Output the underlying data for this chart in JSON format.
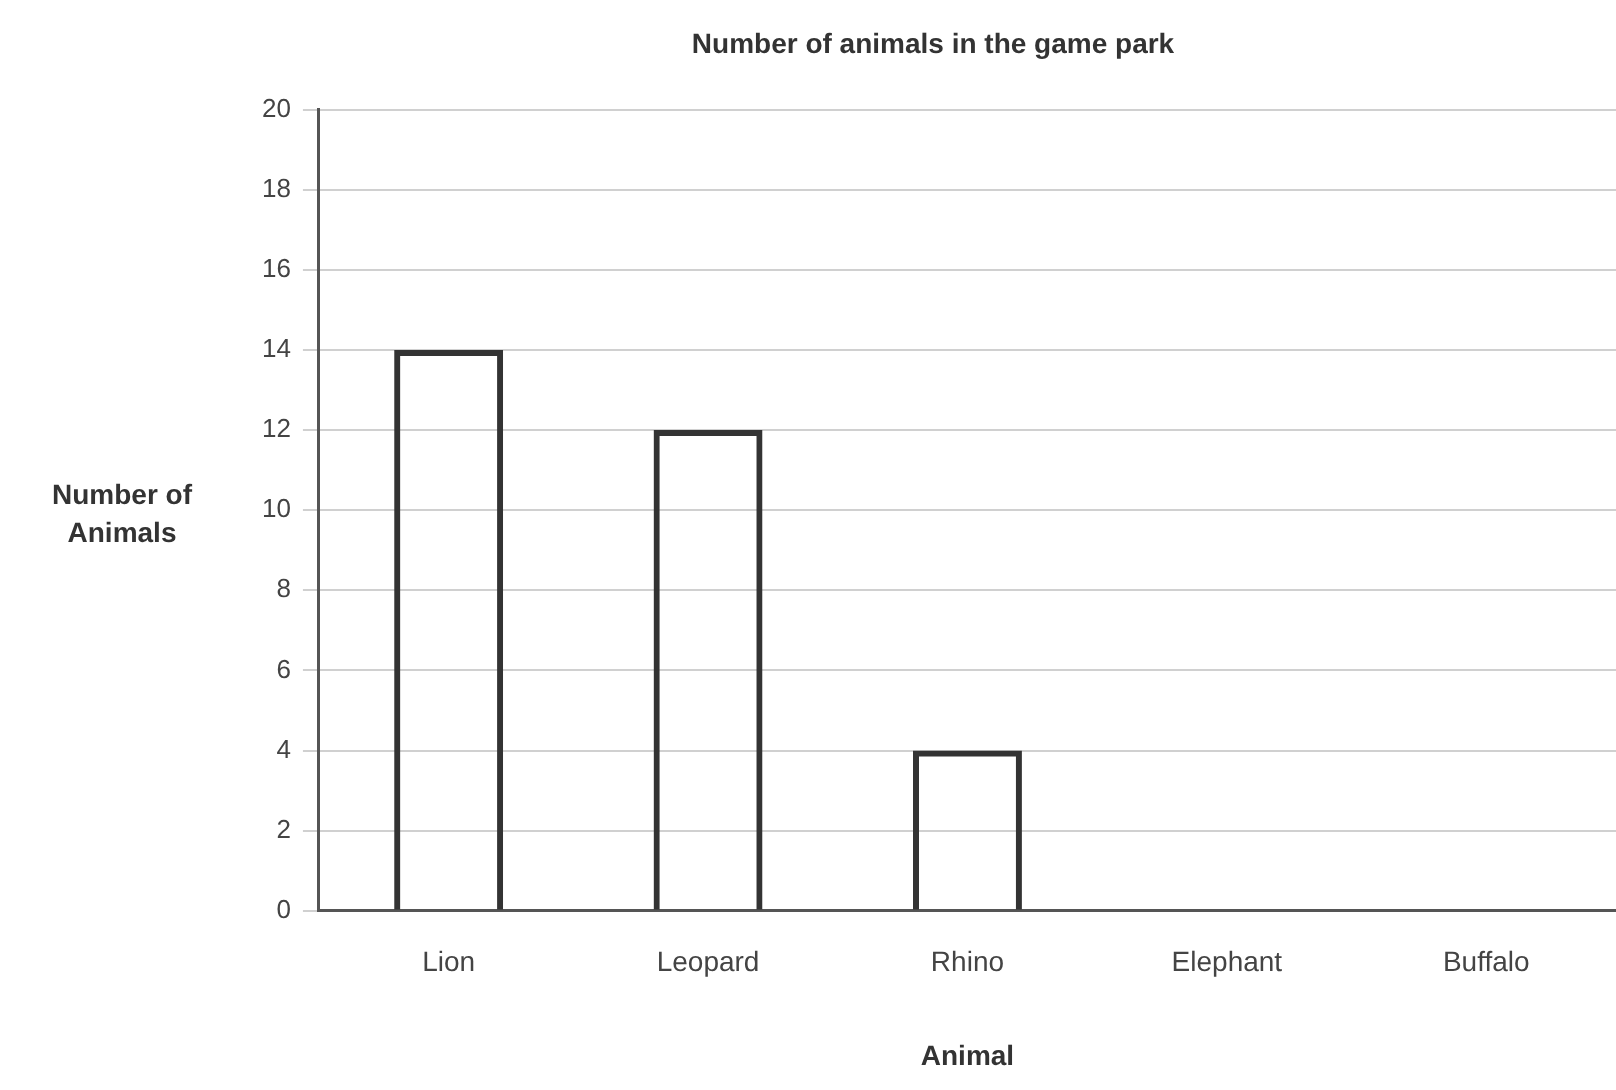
{
  "chart_data": {
    "type": "bar",
    "title": "Number of animals in the game park",
    "xlabel": "Animal",
    "ylabel": "Number of Animals",
    "categories": [
      "Lion",
      "Leopard",
      "Rhino",
      "Elephant",
      "Buffalo"
    ],
    "values": [
      14,
      12,
      4,
      null,
      null
    ],
    "color": "#333333",
    "ylim": [
      0,
      20
    ],
    "yticks": [
      0,
      2,
      4,
      6,
      8,
      10,
      12,
      14,
      16,
      18,
      20
    ],
    "grid": "y"
  }
}
